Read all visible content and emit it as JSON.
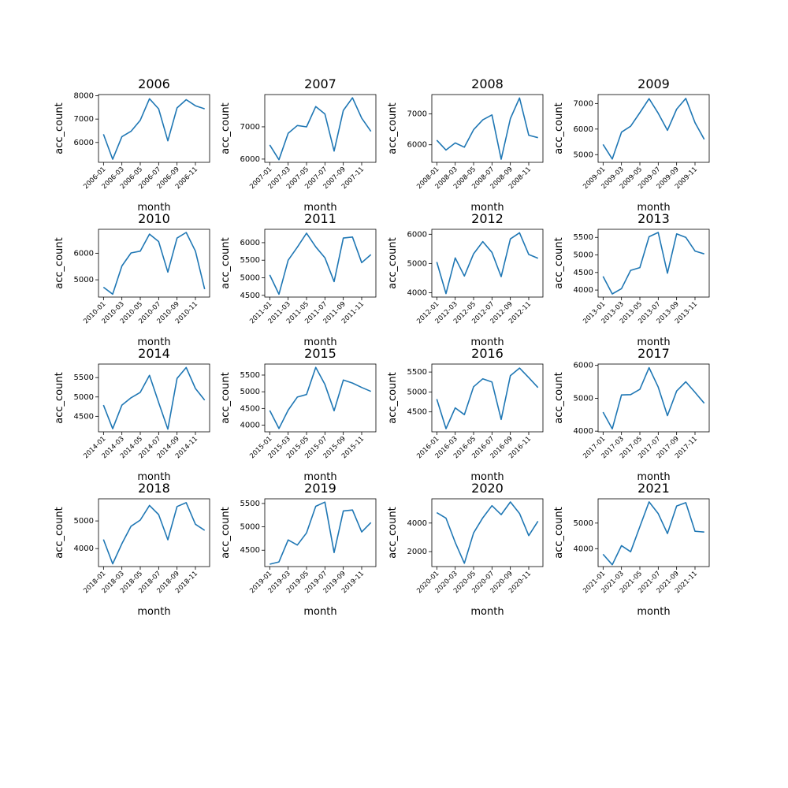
{
  "chart_data": [
    {
      "type": "line",
      "title": "2006",
      "xlabel": "month",
      "ylabel": "acc_count",
      "x": [
        "2006-01",
        "2006-02",
        "2006-03",
        "2006-04",
        "2006-05",
        "2006-06",
        "2006-07",
        "2006-08",
        "2006-09",
        "2006-10",
        "2006-11",
        "2006-12"
      ],
      "xtick_labels": [
        "2006-01",
        "2006-03",
        "2006-05",
        "2006-07",
        "2006-09",
        "2006-11"
      ],
      "values": [
        6350,
        5280,
        6250,
        6480,
        6950,
        7870,
        7440,
        6070,
        7480,
        7830,
        7570,
        7440
      ],
      "ylim": [
        5150,
        8050
      ],
      "yticks": [
        6000,
        7000,
        8000
      ]
    },
    {
      "type": "line",
      "title": "2007",
      "xlabel": "month",
      "ylabel": "acc_count",
      "x": [
        "2007-01",
        "2007-02",
        "2007-03",
        "2007-04",
        "2007-05",
        "2007-06",
        "2007-07",
        "2007-08",
        "2007-09",
        "2007-10",
        "2007-11",
        "2007-12"
      ],
      "xtick_labels": [
        "2007-01",
        "2007-03",
        "2007-05",
        "2007-07",
        "2007-09",
        "2007-11"
      ],
      "values": [
        6440,
        5980,
        6800,
        7040,
        7000,
        7630,
        7400,
        6250,
        7510,
        7900,
        7270,
        6860
      ],
      "ylim": [
        5900,
        8000
      ],
      "yticks": [
        6000,
        7000
      ]
    },
    {
      "type": "line",
      "title": "2008",
      "xlabel": "month",
      "ylabel": "acc_count",
      "x": [
        "2008-01",
        "2008-02",
        "2008-03",
        "2008-04",
        "2008-05",
        "2008-06",
        "2008-07",
        "2008-08",
        "2008-09",
        "2008-10",
        "2008-11",
        "2008-12"
      ],
      "xtick_labels": [
        "2008-01",
        "2008-03",
        "2008-05",
        "2008-07",
        "2008-09",
        "2008-11"
      ],
      "values": [
        6150,
        5830,
        6060,
        5920,
        6490,
        6810,
        6970,
        5530,
        6850,
        7520,
        6310,
        6230
      ],
      "ylim": [
        5430,
        7630
      ],
      "yticks": [
        6000,
        7000
      ]
    },
    {
      "type": "line",
      "title": "2009",
      "xlabel": "month",
      "ylabel": "acc_count",
      "x": [
        "2009-01",
        "2009-02",
        "2009-03",
        "2009-04",
        "2009-05",
        "2009-06",
        "2009-07",
        "2009-08",
        "2009-09",
        "2009-10",
        "2009-11",
        "2009-12"
      ],
      "xtick_labels": [
        "2009-01",
        "2009-03",
        "2009-05",
        "2009-07",
        "2009-09",
        "2009-11"
      ],
      "values": [
        5400,
        4830,
        5880,
        6110,
        6640,
        7190,
        6620,
        5950,
        6780,
        7200,
        6250,
        5600
      ],
      "ylim": [
        4700,
        7350
      ],
      "yticks": [
        5000,
        6000,
        7000
      ]
    },
    {
      "type": "line",
      "title": "2010",
      "xlabel": "month",
      "ylabel": "acc_count",
      "x": [
        "2010-01",
        "2010-02",
        "2010-03",
        "2010-04",
        "2010-05",
        "2010-06",
        "2010-07",
        "2010-08",
        "2010-09",
        "2010-10",
        "2010-11",
        "2010-12"
      ],
      "xtick_labels": [
        "2010-01",
        "2010-03",
        "2010-05",
        "2010-07",
        "2010-09",
        "2010-11"
      ],
      "values": [
        4720,
        4460,
        5520,
        6010,
        6080,
        6720,
        6440,
        5290,
        6570,
        6780,
        6080,
        4650
      ],
      "ylim": [
        4350,
        6900
      ],
      "yticks": [
        5000,
        6000
      ]
    },
    {
      "type": "line",
      "title": "2011",
      "xlabel": "month",
      "ylabel": "acc_count",
      "x": [
        "2011-01",
        "2011-02",
        "2011-03",
        "2011-04",
        "2011-05",
        "2011-06",
        "2011-07",
        "2011-08",
        "2011-09",
        "2011-10",
        "2011-11",
        "2011-12"
      ],
      "xtick_labels": [
        "2011-01",
        "2011-03",
        "2011-05",
        "2011-07",
        "2011-09",
        "2011-11"
      ],
      "values": [
        5080,
        4530,
        5500,
        5870,
        6270,
        5880,
        5570,
        4890,
        6130,
        6160,
        5430,
        5660
      ],
      "ylim": [
        4450,
        6380
      ],
      "yticks": [
        4500,
        5000,
        5500,
        6000
      ]
    },
    {
      "type": "line",
      "title": "2012",
      "xlabel": "month",
      "ylabel": "acc_count",
      "x": [
        "2012-01",
        "2012-02",
        "2012-03",
        "2012-04",
        "2012-05",
        "2012-06",
        "2012-07",
        "2012-08",
        "2012-09",
        "2012-10",
        "2012-11",
        "2012-12"
      ],
      "xtick_labels": [
        "2012-01",
        "2012-03",
        "2012-05",
        "2012-07",
        "2012-09",
        "2012-11"
      ],
      "values": [
        5050,
        3970,
        5190,
        4570,
        5330,
        5750,
        5380,
        4550,
        5840,
        6050,
        5310,
        5180
      ],
      "ylim": [
        3850,
        6170
      ],
      "yticks": [
        4000,
        5000,
        6000
      ]
    },
    {
      "type": "line",
      "title": "2013",
      "xlabel": "month",
      "ylabel": "acc_count",
      "x": [
        "2013-01",
        "2013-02",
        "2013-03",
        "2013-04",
        "2013-05",
        "2013-06",
        "2013-07",
        "2013-08",
        "2013-09",
        "2013-10",
        "2013-11",
        "2013-12"
      ],
      "xtick_labels": [
        "2013-01",
        "2013-03",
        "2013-05",
        "2013-07",
        "2013-09",
        "2013-11"
      ],
      "values": [
        4390,
        3890,
        4040,
        4560,
        4640,
        5520,
        5640,
        4480,
        5600,
        5500,
        5110,
        5030
      ],
      "ylim": [
        3800,
        5730
      ],
      "yticks": [
        4000,
        4500,
        5000,
        5500
      ]
    },
    {
      "type": "line",
      "title": "2014",
      "xlabel": "month",
      "ylabel": "acc_count",
      "x": [
        "2014-01",
        "2014-02",
        "2014-03",
        "2014-04",
        "2014-05",
        "2014-06",
        "2014-07",
        "2014-08",
        "2014-09",
        "2014-10",
        "2014-11",
        "2014-12"
      ],
      "xtick_labels": [
        "2014-01",
        "2014-03",
        "2014-05",
        "2014-07",
        "2014-09",
        "2014-11"
      ],
      "values": [
        4790,
        4180,
        4790,
        4980,
        5120,
        5560,
        4860,
        4170,
        5480,
        5760,
        5220,
        4920
      ],
      "ylim": [
        4100,
        5850
      ],
      "yticks": [
        4500,
        5000,
        5500
      ]
    },
    {
      "type": "line",
      "title": "2015",
      "xlabel": "month",
      "ylabel": "acc_count",
      "x": [
        "2015-01",
        "2015-02",
        "2015-03",
        "2015-04",
        "2015-05",
        "2015-06",
        "2015-07",
        "2015-08",
        "2015-09",
        "2015-10",
        "2015-11",
        "2015-12"
      ],
      "xtick_labels": [
        "2015-01",
        "2015-03",
        "2015-05",
        "2015-07",
        "2015-09",
        "2015-11"
      ],
      "values": [
        4440,
        3900,
        4450,
        4840,
        4920,
        5730,
        5220,
        4430,
        5350,
        5260,
        5130,
        5010
      ],
      "ylim": [
        3800,
        5830
      ],
      "yticks": [
        4000,
        4500,
        5000,
        5500
      ]
    },
    {
      "type": "line",
      "title": "2016",
      "xlabel": "month",
      "ylabel": "acc_count",
      "x": [
        "2016-01",
        "2016-02",
        "2016-03",
        "2016-04",
        "2016-05",
        "2016-06",
        "2016-07",
        "2016-08",
        "2016-09",
        "2016-10",
        "2016-11",
        "2016-12"
      ],
      "xtick_labels": [
        "2016-01",
        "2016-03",
        "2016-05",
        "2016-07",
        "2016-09",
        "2016-11"
      ],
      "values": [
        4820,
        4080,
        4600,
        4430,
        5130,
        5330,
        5250,
        4310,
        5410,
        5600,
        5360,
        5110
      ],
      "ylim": [
        4000,
        5700
      ],
      "yticks": [
        4500,
        5000,
        5500
      ]
    },
    {
      "type": "line",
      "title": "2017",
      "xlabel": "month",
      "ylabel": "acc_count",
      "x": [
        "2017-01",
        "2017-02",
        "2017-03",
        "2017-04",
        "2017-05",
        "2017-06",
        "2017-07",
        "2017-08",
        "2017-09",
        "2017-10",
        "2017-11",
        "2017-12"
      ],
      "xtick_labels": [
        "2017-01",
        "2017-03",
        "2017-05",
        "2017-07",
        "2017-09",
        "2017-11"
      ],
      "values": [
        4580,
        4070,
        5100,
        5110,
        5270,
        5930,
        5340,
        4470,
        5220,
        5500,
        5180,
        4850
      ],
      "ylim": [
        3980,
        6040
      ],
      "yticks": [
        4000,
        5000,
        6000
      ]
    },
    {
      "type": "line",
      "title": "2018",
      "xlabel": "month",
      "ylabel": "acc_count",
      "x": [
        "2018-01",
        "2018-02",
        "2018-03",
        "2018-04",
        "2018-05",
        "2018-06",
        "2018-07",
        "2018-08",
        "2018-09",
        "2018-10",
        "2018-11",
        "2018-12"
      ],
      "xtick_labels": [
        "2018-01",
        "2018-03",
        "2018-05",
        "2018-07",
        "2018-09",
        "2018-11"
      ],
      "values": [
        4330,
        3450,
        4180,
        4810,
        5030,
        5560,
        5230,
        4320,
        5520,
        5660,
        4880,
        4660
      ],
      "ylim": [
        3350,
        5800
      ],
      "yticks": [
        4000,
        5000
      ]
    },
    {
      "type": "line",
      "title": "2019",
      "xlabel": "month",
      "ylabel": "acc_count",
      "x": [
        "2019-01",
        "2019-02",
        "2019-03",
        "2019-04",
        "2019-05",
        "2019-06",
        "2019-07",
        "2019-08",
        "2019-09",
        "2019-10",
        "2019-11",
        "2019-12"
      ],
      "xtick_labels": [
        "2019-01",
        "2019-03",
        "2019-05",
        "2019-07",
        "2019-09",
        "2019-11"
      ],
      "values": [
        4200,
        4250,
        4720,
        4610,
        4870,
        5440,
        5530,
        4450,
        5340,
        5360,
        4890,
        5090
      ],
      "ylim": [
        4150,
        5600
      ],
      "yticks": [
        4500,
        5000,
        5500
      ]
    },
    {
      "type": "line",
      "title": "2020",
      "xlabel": "month",
      "ylabel": "acc_count",
      "x": [
        "2020-01",
        "2020-02",
        "2020-03",
        "2020-04",
        "2020-05",
        "2020-06",
        "2020-07",
        "2020-08",
        "2020-09",
        "2020-10",
        "2020-11",
        "2020-12"
      ],
      "xtick_labels": [
        "2020-01",
        "2020-03",
        "2020-05",
        "2020-07",
        "2020-09",
        "2020-11"
      ],
      "values": [
        4730,
        4340,
        2640,
        1180,
        3310,
        4370,
        5220,
        4590,
        5480,
        4670,
        3120,
        4130
      ],
      "ylim": [
        950,
        5700
      ],
      "yticks": [
        2000,
        4000
      ]
    },
    {
      "type": "line",
      "title": "2021",
      "xlabel": "month",
      "ylabel": "acc_count",
      "x": [
        "2021-01",
        "2021-02",
        "2021-03",
        "2021-04",
        "2021-05",
        "2021-06",
        "2021-07",
        "2021-08",
        "2021-09",
        "2021-10",
        "2021-11",
        "2021-12"
      ],
      "xtick_labels": [
        "2021-01",
        "2021-03",
        "2021-05",
        "2021-07",
        "2021-09",
        "2021-11"
      ],
      "values": [
        3780,
        3370,
        4120,
        3880,
        4860,
        5830,
        5370,
        4590,
        5670,
        5800,
        4680,
        4650
      ],
      "ylim": [
        3300,
        5950
      ],
      "yticks": [
        4000,
        5000
      ]
    }
  ],
  "colors": {
    "line": "#1f77b4",
    "axes": "#000000",
    "background": "#ffffff"
  }
}
